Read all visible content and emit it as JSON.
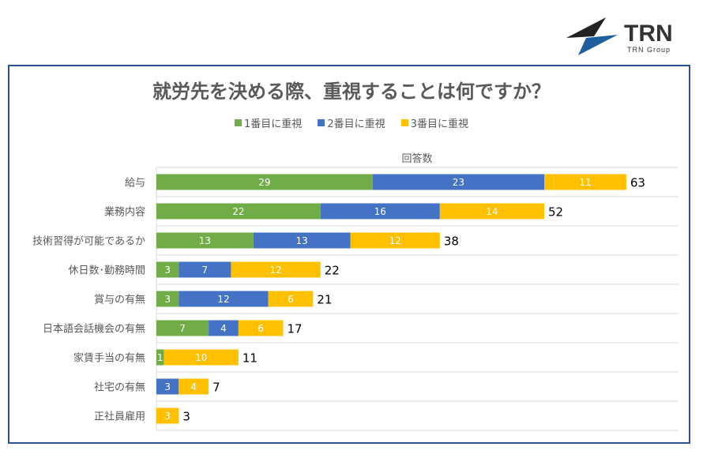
{
  "logo": {
    "text": "TRN",
    "subtext": "TRN Group"
  },
  "chart_data": {
    "type": "bar",
    "orientation": "horizontal",
    "stacked": true,
    "title": "就労先を決める際、重視することは何ですか？",
    "xlabel": "回答数",
    "xlim": [
      0,
      70
    ],
    "legend_position": "top",
    "categories": [
      "給与",
      "業務内容",
      "技術習得が可能であるか",
      "休日数･勤務時間",
      "賞与の有無",
      "日本語会話機会の有無",
      "家賃手当の有無",
      "社宅の有無",
      "正社員雇用"
    ],
    "series": [
      {
        "name": "1番目に重視",
        "color": "#70ad47",
        "values": [
          29,
          22,
          13,
          3,
          3,
          7,
          1,
          0,
          0
        ]
      },
      {
        "name": "2番目に重視",
        "color": "#4472c4",
        "values": [
          23,
          16,
          13,
          7,
          12,
          4,
          0,
          3,
          0
        ]
      },
      {
        "name": "3番目に重視",
        "color": "#ffc000",
        "values": [
          11,
          14,
          12,
          12,
          6,
          6,
          10,
          4,
          3
        ]
      }
    ],
    "totals": [
      63,
      52,
      38,
      22,
      21,
      17,
      11,
      7,
      3
    ]
  }
}
